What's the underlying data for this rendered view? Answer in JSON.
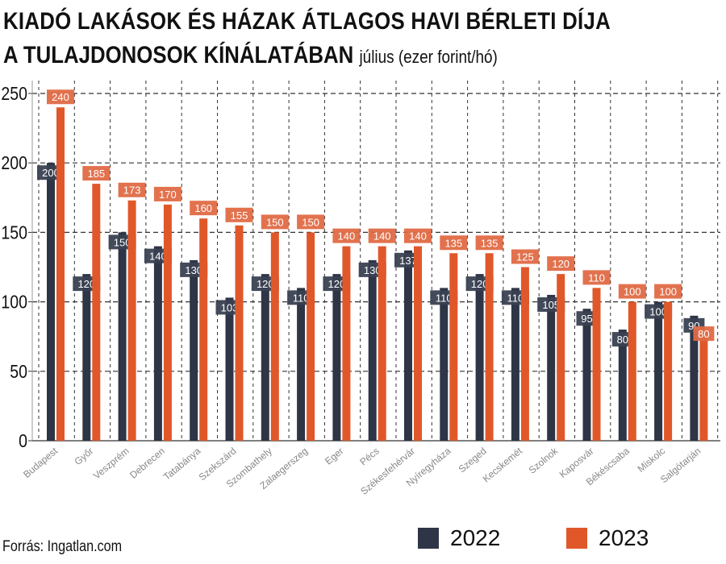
{
  "title_line1": "KIADÓ LAKÁSOK ÉS HÁZAK ÁTLAGOS HAVI BÉRLETI DÍJA",
  "title_line2": "A TULAJDONOSOK KÍNÁLATÁBAN",
  "subtitle": "július (ezer forint/hó)",
  "source": "Forrás: Ingatlan.com",
  "chart_data": {
    "type": "bar",
    "categories": [
      "Budapest",
      "Győr",
      "Veszprém",
      "Debrecen",
      "Tatabánya",
      "Szekszárd",
      "Szombathely",
      "Zalaegerszeg",
      "Eger",
      "Pécs",
      "Székesfehérvár",
      "Nyíregyháza",
      "Szeged",
      "Kecskemét",
      "Szolnok",
      "Kaposvár",
      "Békéscsaba",
      "Miskolc",
      "Salgótarján"
    ],
    "series": [
      {
        "name": "2022",
        "color": "#2e3546",
        "values": [
          200,
          120,
          150,
          140,
          130,
          103,
          120,
          110,
          120,
          130,
          137,
          110,
          120,
          110,
          105,
          95,
          80,
          100,
          90
        ]
      },
      {
        "name": "2023",
        "color": "#e0582a",
        "values": [
          240,
          185,
          173,
          170,
          160,
          155,
          150,
          150,
          140,
          140,
          140,
          135,
          135,
          125,
          120,
          110,
          100,
          100,
          80
        ]
      }
    ],
    "ylim": [
      0,
      250
    ],
    "yticks": [
      0,
      50,
      100,
      150,
      200,
      250
    ],
    "grid": true,
    "legend_position": "bottom"
  }
}
